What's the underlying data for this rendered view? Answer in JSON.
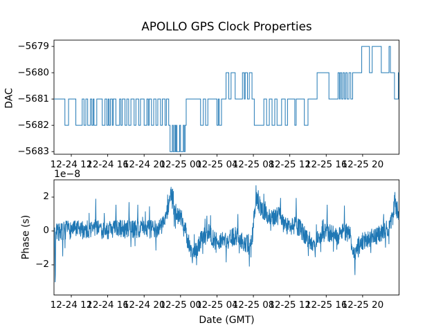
{
  "figure": {
    "title": "APOLLO GPS Clock Properties",
    "background": "#ffffff",
    "line_color": "#1f77b4",
    "spine_color": "#000000",
    "text_color": "#000000"
  },
  "chart_data": [
    {
      "type": "step",
      "name": "dac-subplot",
      "title": "APOLLO GPS Clock Properties",
      "ylabel": "DAC",
      "x_unit": "hours since 12-24 00:00 GMT",
      "xlim": [
        10.1,
        48.0
      ],
      "ylim": [
        -5683.1,
        -5678.76
      ],
      "grid": false,
      "legend": "none",
      "yticks": {
        "values": [
          -5679,
          -5680,
          -5681,
          -5682,
          -5683
        ],
        "labels": [
          "−5679",
          "−5680",
          "−5681",
          "−5682",
          "−5683"
        ]
      },
      "xticks": {
        "values": [
          12,
          16,
          20,
          24,
          28,
          32,
          36,
          40,
          44
        ],
        "labels": [
          "12-24 12",
          "12-24 16",
          "12-24 20",
          "12-25 00",
          "12-25 04",
          "12-25 08",
          "12-25 12",
          "12-25 16",
          "12-25 20"
        ]
      },
      "points": [
        [
          10.1,
          -5681
        ],
        [
          11.3,
          -5682
        ],
        [
          11.7,
          -5681
        ],
        [
          12.5,
          -5682
        ],
        [
          13.2,
          -5681
        ],
        [
          13.4,
          -5682
        ],
        [
          13.6,
          -5681
        ],
        [
          13.8,
          -5682
        ],
        [
          14.1,
          -5681
        ],
        [
          14.25,
          -5682
        ],
        [
          14.4,
          -5681
        ],
        [
          14.5,
          -5682
        ],
        [
          14.8,
          -5681
        ],
        [
          15.4,
          -5682
        ],
        [
          15.7,
          -5681
        ],
        [
          15.9,
          -5682
        ],
        [
          16.05,
          -5681
        ],
        [
          16.15,
          -5682
        ],
        [
          16.3,
          -5681
        ],
        [
          16.5,
          -5682
        ],
        [
          16.6,
          -5681
        ],
        [
          16.9,
          -5682
        ],
        [
          17.3,
          -5681
        ],
        [
          17.45,
          -5682
        ],
        [
          17.6,
          -5681
        ],
        [
          17.9,
          -5682
        ],
        [
          18.1,
          -5681
        ],
        [
          18.3,
          -5682
        ],
        [
          18.55,
          -5681
        ],
        [
          18.9,
          -5682
        ],
        [
          19.1,
          -5681
        ],
        [
          19.4,
          -5682
        ],
        [
          19.6,
          -5681
        ],
        [
          20.0,
          -5682
        ],
        [
          20.3,
          -5681
        ],
        [
          20.45,
          -5682
        ],
        [
          20.55,
          -5681
        ],
        [
          20.8,
          -5682
        ],
        [
          21.05,
          -5681
        ],
        [
          21.3,
          -5682
        ],
        [
          21.5,
          -5681
        ],
        [
          21.8,
          -5682
        ],
        [
          22.0,
          -5681
        ],
        [
          22.3,
          -5682
        ],
        [
          22.45,
          -5681
        ],
        [
          22.7,
          -5682
        ],
        [
          22.85,
          -5683
        ],
        [
          23.1,
          -5682
        ],
        [
          23.2,
          -5683
        ],
        [
          23.35,
          -5682
        ],
        [
          23.45,
          -5683
        ],
        [
          23.55,
          -5682
        ],
        [
          23.6,
          -5683
        ],
        [
          23.9,
          -5682
        ],
        [
          24.0,
          -5683
        ],
        [
          24.3,
          -5682
        ],
        [
          24.4,
          -5683
        ],
        [
          24.5,
          -5682
        ],
        [
          24.62,
          -5681
        ],
        [
          26.2,
          -5682
        ],
        [
          26.5,
          -5681
        ],
        [
          26.75,
          -5682
        ],
        [
          27.0,
          -5681
        ],
        [
          28.0,
          -5682
        ],
        [
          28.15,
          -5681
        ],
        [
          28.25,
          -5682
        ],
        [
          28.5,
          -5681
        ],
        [
          29.0,
          -5680
        ],
        [
          29.3,
          -5681
        ],
        [
          29.55,
          -5680
        ],
        [
          30.0,
          -5681
        ],
        [
          30.8,
          -5680
        ],
        [
          31.0,
          -5681
        ],
        [
          31.1,
          -5680
        ],
        [
          31.35,
          -5681
        ],
        [
          31.55,
          -5680
        ],
        [
          31.85,
          -5681
        ],
        [
          32.1,
          -5682
        ],
        [
          33.15,
          -5681
        ],
        [
          33.45,
          -5682
        ],
        [
          33.75,
          -5681
        ],
        [
          34.05,
          -5682
        ],
        [
          34.35,
          -5681
        ],
        [
          34.6,
          -5682
        ],
        [
          35.1,
          -5681
        ],
        [
          35.5,
          -5682
        ],
        [
          35.75,
          -5681
        ],
        [
          36.55,
          -5682
        ],
        [
          36.7,
          -5681
        ],
        [
          37.6,
          -5682
        ],
        [
          38.0,
          -5681
        ],
        [
          39.0,
          -5680
        ],
        [
          40.3,
          -5681
        ],
        [
          41.3,
          -5680
        ],
        [
          41.45,
          -5681
        ],
        [
          41.55,
          -5680
        ],
        [
          41.7,
          -5681
        ],
        [
          41.85,
          -5680
        ],
        [
          42.0,
          -5681
        ],
        [
          42.15,
          -5680
        ],
        [
          42.3,
          -5681
        ],
        [
          42.5,
          -5680
        ],
        [
          42.7,
          -5681
        ],
        [
          42.9,
          -5680
        ],
        [
          43.9,
          -5679
        ],
        [
          44.75,
          -5680
        ],
        [
          45.05,
          -5679
        ],
        [
          46.05,
          -5680
        ],
        [
          46.9,
          -5679
        ],
        [
          47.05,
          -5680
        ],
        [
          47.5,
          -5681
        ],
        [
          47.92,
          -5680
        ]
      ]
    },
    {
      "type": "line",
      "name": "phase-subplot",
      "ylabel": "Phase (s)",
      "xlabel": "Date (GMT)",
      "offset_text": "1e−8",
      "y_unit": "1e-8 s",
      "xlim": [
        10.1,
        48.0
      ],
      "ylim": [
        -3.78,
        3.02
      ],
      "grid": false,
      "legend": "none",
      "yticks": {
        "values": [
          2,
          0,
          -2
        ],
        "labels": [
          "2",
          "0",
          "−2"
        ]
      },
      "xticks": {
        "values": [
          12,
          16,
          20,
          24,
          28,
          32,
          36,
          40,
          44
        ],
        "labels": [
          "12-24 12",
          "12-24 16",
          "12-24 20",
          "12-25 00",
          "12-25 04",
          "12-25 08",
          "12-25 12",
          "12-25 16",
          "12-25 20"
        ]
      },
      "anchors": [
        [
          10.15,
          0.0
        ],
        [
          10.4,
          -0.1
        ],
        [
          11.0,
          0.0
        ],
        [
          12.0,
          0.1
        ],
        [
          13.0,
          0.05
        ],
        [
          14.0,
          0.1
        ],
        [
          14.7,
          0.2
        ],
        [
          15.5,
          0.0
        ],
        [
          16.5,
          0.1
        ],
        [
          17.5,
          0.15
        ],
        [
          18.5,
          0.1
        ],
        [
          19.5,
          0.15
        ],
        [
          20.5,
          0.1
        ],
        [
          21.2,
          0.1
        ],
        [
          21.9,
          0.3
        ],
        [
          22.5,
          1.0
        ],
        [
          22.95,
          2.2
        ],
        [
          23.3,
          1.1
        ],
        [
          23.9,
          0.85
        ],
        [
          24.3,
          0.55
        ],
        [
          24.8,
          -0.5
        ],
        [
          25.2,
          -1.15
        ],
        [
          25.8,
          -1.2
        ],
        [
          26.3,
          -0.45
        ],
        [
          26.8,
          -0.15
        ],
        [
          27.2,
          -0.05
        ],
        [
          27.6,
          -0.5
        ],
        [
          28.1,
          -0.7
        ],
        [
          28.7,
          -0.55
        ],
        [
          29.3,
          -0.5
        ],
        [
          30.0,
          -0.3
        ],
        [
          30.6,
          -0.5
        ],
        [
          31.2,
          -0.75
        ],
        [
          31.6,
          -0.9
        ],
        [
          31.9,
          -0.2
        ],
        [
          32.15,
          1.3
        ],
        [
          32.4,
          1.9
        ],
        [
          32.7,
          1.5
        ],
        [
          33.1,
          1.15
        ],
        [
          33.6,
          0.9
        ],
        [
          34.1,
          0.7
        ],
        [
          34.9,
          0.95
        ],
        [
          35.4,
          0.4
        ],
        [
          36.0,
          0.2
        ],
        [
          36.6,
          0.35
        ],
        [
          37.2,
          0.1
        ],
        [
          37.8,
          -0.35
        ],
        [
          38.5,
          -0.7
        ],
        [
          39.0,
          -0.55
        ],
        [
          39.4,
          -0.2
        ],
        [
          40.0,
          -0.05
        ],
        [
          40.6,
          -0.2
        ],
        [
          41.2,
          -0.3
        ],
        [
          41.9,
          0.05
        ],
        [
          42.5,
          -0.2
        ],
        [
          42.95,
          -1.0
        ],
        [
          43.15,
          -1.55
        ],
        [
          43.5,
          -0.85
        ],
        [
          44.2,
          -0.55
        ],
        [
          44.8,
          -0.4
        ],
        [
          45.5,
          -0.3
        ],
        [
          46.2,
          -0.05
        ],
        [
          46.9,
          0.25
        ],
        [
          47.3,
          0.8
        ],
        [
          47.55,
          1.75
        ],
        [
          47.8,
          1.2
        ],
        [
          47.95,
          0.65
        ]
      ],
      "spikes": [
        [
          10.22,
          -3.45
        ],
        [
          10.26,
          -2.6
        ],
        [
          11.05,
          -1.5
        ],
        [
          14.7,
          1.9
        ],
        [
          16.9,
          1.55
        ],
        [
          18.35,
          1.7
        ],
        [
          19.3,
          1.55
        ],
        [
          20.6,
          1.45
        ],
        [
          21.3,
          -1.15
        ],
        [
          22.95,
          2.6
        ],
        [
          23.5,
          1.6
        ],
        [
          25.3,
          -1.9
        ],
        [
          26.9,
          0.9
        ],
        [
          29.0,
          -1.85
        ],
        [
          30.3,
          1.0
        ],
        [
          31.55,
          -2.1
        ],
        [
          32.3,
          2.7
        ],
        [
          32.55,
          2.4
        ],
        [
          33.3,
          1.75
        ],
        [
          35.0,
          1.95
        ],
        [
          36.7,
          1.95
        ],
        [
          38.8,
          -1.55
        ],
        [
          40.1,
          1.55
        ],
        [
          42.0,
          1.5
        ],
        [
          43.15,
          -2.6
        ],
        [
          44.9,
          -1.3
        ],
        [
          46.3,
          1.0
        ],
        [
          47.55,
          2.3
        ]
      ],
      "noise": {
        "amp": 0.55,
        "tail_prob": 0.06,
        "tail_amp": 1.1,
        "seed": 7
      },
      "n_points": 1500
    }
  ]
}
